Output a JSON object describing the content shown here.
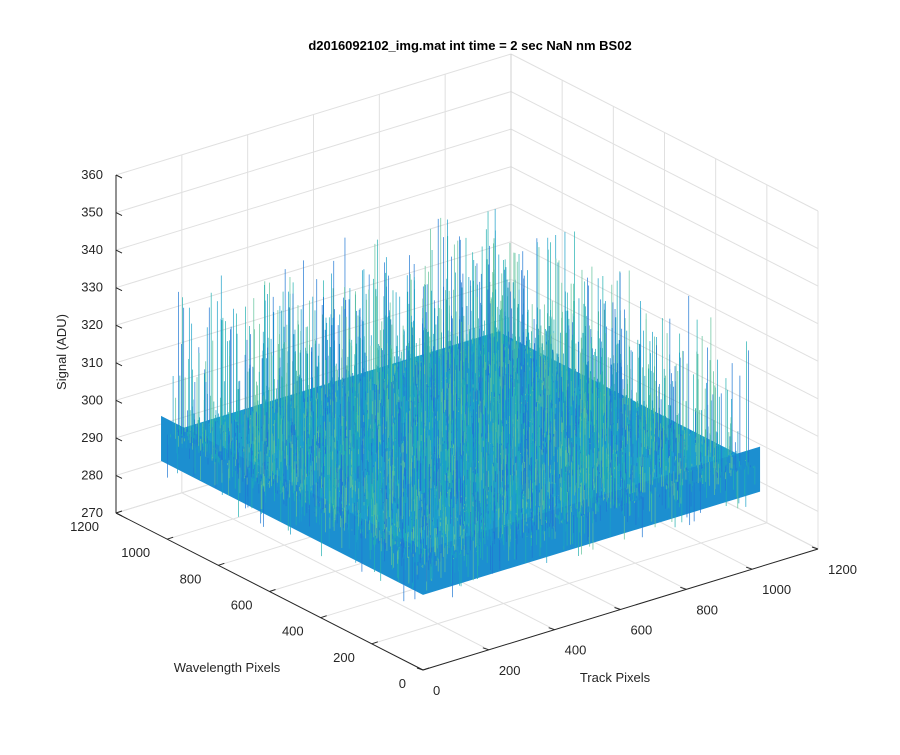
{
  "chart_data": {
    "type": "surface",
    "title": "d2016092102_img.mat int time = 2 sec  NaN nm BS02",
    "xlabel": "Track Pixels",
    "ylabel": "Wavelength Pixels",
    "zlabel": "Signal (ADU)",
    "xlim": [
      0,
      1200
    ],
    "ylim": [
      0,
      1200
    ],
    "zlim": [
      270,
      360
    ],
    "x_ticks": [
      "0",
      "200",
      "400",
      "600",
      "800",
      "1000",
      "1200"
    ],
    "y_ticks": [
      "0",
      "200",
      "400",
      "600",
      "800",
      "1000",
      "1200"
    ],
    "z_ticks": [
      "270",
      "280",
      "290",
      "300",
      "310",
      "320",
      "330",
      "340",
      "350",
      "360"
    ],
    "data_extent": {
      "x": [
        0,
        1024
      ],
      "y": [
        0,
        1024
      ]
    },
    "signal_mean": 297,
    "signal_range": [
      285,
      335
    ],
    "grid": true,
    "colormap": [
      "#1f77d4",
      "#1aa0c8",
      "#22b0b0",
      "#5fc29a"
    ]
  }
}
